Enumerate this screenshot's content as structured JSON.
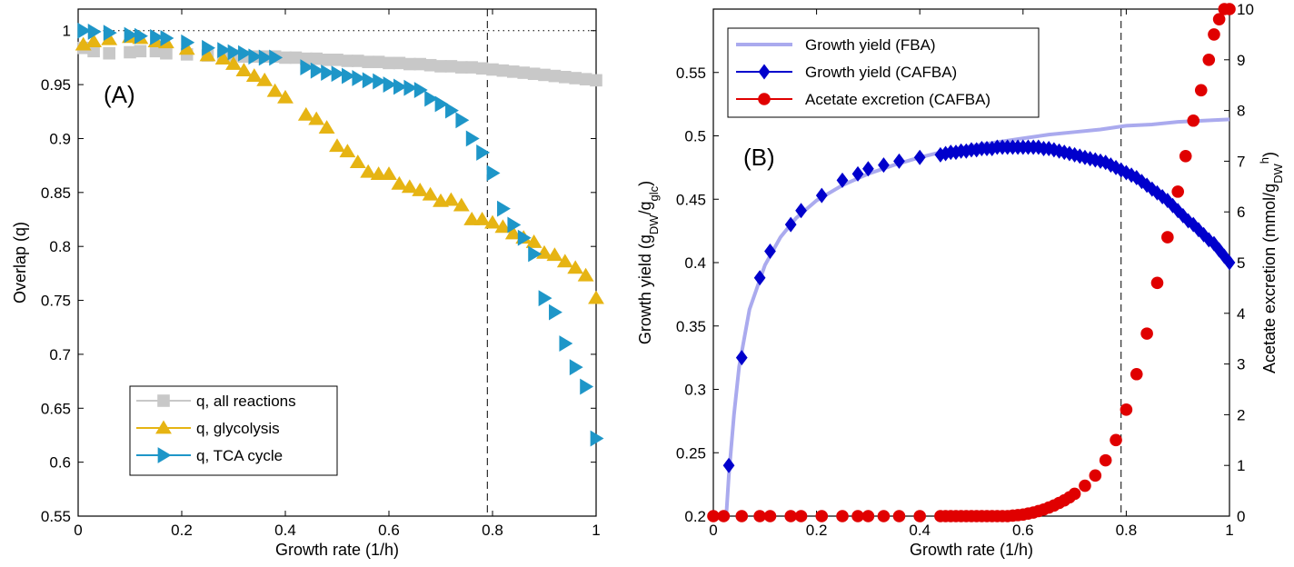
{
  "chart_data": [
    {
      "type": "scatter",
      "panel_label": "(A)",
      "xlabel": "Growth rate (1/h)",
      "ylabel": "Overlap (q)",
      "xlim": [
        0,
        1
      ],
      "ylim": [
        0.55,
        1.02
      ],
      "xticks": [
        "0",
        "0.2",
        "0.4",
        "0.6",
        "0.8",
        "1"
      ],
      "yticks": [
        "0.55",
        "0.6",
        "0.65",
        "0.7",
        "0.75",
        "0.8",
        "0.85",
        "0.9",
        "0.95",
        "1"
      ],
      "reference_lines": {
        "horizontal_dotted_y": 1.0,
        "vertical_dashed_x": 0.79
      },
      "legend_position": "bottom-left",
      "series": [
        {
          "name": "q, all reactions",
          "color": "#c8c8c8",
          "marker": "square",
          "x": [
            0.01,
            0.03,
            0.06,
            0.1,
            0.12,
            0.15,
            0.17,
            0.21,
            0.25,
            0.28,
            0.3,
            0.32,
            0.34,
            0.36,
            0.38,
            0.4,
            0.42,
            0.44,
            0.46,
            0.48,
            0.5,
            0.52,
            0.54,
            0.56,
            0.58,
            0.6,
            0.62,
            0.64,
            0.66,
            0.68,
            0.7,
            0.72,
            0.74,
            0.76,
            0.78,
            0.8,
            0.82,
            0.84,
            0.86,
            0.88,
            0.9,
            0.92,
            0.94,
            0.96,
            0.98,
            1.0
          ],
          "y": [
            0.984,
            0.981,
            0.979,
            0.98,
            0.981,
            0.981,
            0.979,
            0.978,
            0.977,
            0.977,
            0.977,
            0.976,
            0.976,
            0.976,
            0.976,
            0.975,
            0.975,
            0.974,
            0.974,
            0.973,
            0.973,
            0.972,
            0.972,
            0.971,
            0.971,
            0.97,
            0.97,
            0.969,
            0.969,
            0.968,
            0.967,
            0.967,
            0.966,
            0.966,
            0.965,
            0.964,
            0.963,
            0.962,
            0.961,
            0.96,
            0.959,
            0.958,
            0.957,
            0.956,
            0.955,
            0.954
          ]
        },
        {
          "name": "q, glycolysis",
          "color": "#e6b413",
          "marker": "triangle-up",
          "x": [
            0.01,
            0.03,
            0.06,
            0.1,
            0.12,
            0.15,
            0.17,
            0.21,
            0.25,
            0.28,
            0.3,
            0.32,
            0.34,
            0.36,
            0.38,
            0.4,
            0.44,
            0.46,
            0.48,
            0.5,
            0.52,
            0.54,
            0.56,
            0.58,
            0.6,
            0.62,
            0.64,
            0.66,
            0.68,
            0.7,
            0.72,
            0.74,
            0.76,
            0.78,
            0.8,
            0.82,
            0.84,
            0.86,
            0.88,
            0.9,
            0.92,
            0.94,
            0.96,
            0.98,
            1.0
          ],
          "y": [
            0.987,
            0.99,
            0.992,
            0.994,
            0.993,
            0.99,
            0.989,
            0.983,
            0.977,
            0.974,
            0.969,
            0.963,
            0.958,
            0.954,
            0.944,
            0.938,
            0.922,
            0.918,
            0.91,
            0.893,
            0.888,
            0.878,
            0.869,
            0.867,
            0.867,
            0.858,
            0.855,
            0.852,
            0.848,
            0.842,
            0.843,
            0.838,
            0.825,
            0.825,
            0.822,
            0.818,
            0.812,
            0.808,
            0.804,
            0.794,
            0.792,
            0.786,
            0.78,
            0.773,
            0.752
          ]
        },
        {
          "name": "q, TCA cycle",
          "color": "#1e96c8",
          "marker": "triangle-right",
          "x": [
            0.01,
            0.03,
            0.06,
            0.1,
            0.12,
            0.15,
            0.17,
            0.21,
            0.25,
            0.28,
            0.3,
            0.32,
            0.34,
            0.36,
            0.38,
            0.44,
            0.46,
            0.48,
            0.5,
            0.52,
            0.54,
            0.56,
            0.58,
            0.6,
            0.62,
            0.64,
            0.66,
            0.68,
            0.7,
            0.72,
            0.74,
            0.76,
            0.78,
            0.8,
            0.82,
            0.84,
            0.86,
            0.88,
            0.9,
            0.92,
            0.94,
            0.96,
            0.98,
            1.0
          ],
          "y": [
            1.0,
            0.999,
            0.998,
            0.996,
            0.995,
            0.994,
            0.993,
            0.989,
            0.984,
            0.982,
            0.98,
            0.979,
            0.976,
            0.975,
            0.975,
            0.966,
            0.963,
            0.961,
            0.96,
            0.958,
            0.956,
            0.954,
            0.953,
            0.95,
            0.948,
            0.947,
            0.945,
            0.937,
            0.932,
            0.926,
            0.917,
            0.9,
            0.887,
            0.868,
            0.835,
            0.82,
            0.808,
            0.793,
            0.752,
            0.739,
            0.71,
            0.688,
            0.67,
            0.622
          ]
        }
      ]
    },
    {
      "type": "scatter",
      "panel_label": "(B)",
      "xlabel": "Growth rate (1/h)",
      "ylabel_left": "Growth yield (g_DW/g_glc)",
      "ylabel_right": "Acetate excretion (mmol/g_DW h)",
      "xlim": [
        0,
        1
      ],
      "ylim_left": [
        0.2,
        0.6
      ],
      "ylim_right": [
        0,
        10
      ],
      "xticks": [
        "0",
        "0.2",
        "0.4",
        "0.6",
        "0.8",
        "1"
      ],
      "yticks_left": [
        "0.2",
        "0.25",
        "0.3",
        "0.35",
        "0.4",
        "0.45",
        "0.5",
        "0.55"
      ],
      "yticks_right": [
        "0",
        "1",
        "2",
        "3",
        "4",
        "5",
        "6",
        "7",
        "8",
        "9",
        "10"
      ],
      "reference_lines": {
        "vertical_dashed_x": 0.79
      },
      "legend_position": "top-left",
      "series": [
        {
          "name": "Growth yield (FBA)",
          "axis": "left",
          "color": "#aaaaee",
          "style": "line",
          "x": [
            0.025,
            0.03,
            0.04,
            0.05,
            0.07,
            0.1,
            0.13,
            0.16,
            0.2,
            0.25,
            0.3,
            0.35,
            0.4,
            0.45,
            0.5,
            0.55,
            0.6,
            0.65,
            0.7,
            0.75,
            0.8,
            0.85,
            0.9,
            0.95,
            1.0
          ],
          "y": [
            0.2,
            0.232,
            0.28,
            0.318,
            0.363,
            0.398,
            0.42,
            0.435,
            0.449,
            0.461,
            0.47,
            0.477,
            0.483,
            0.488,
            0.492,
            0.495,
            0.498,
            0.501,
            0.503,
            0.505,
            0.508,
            0.509,
            0.511,
            0.512,
            0.513
          ]
        },
        {
          "name": "Growth yield (CAFBA)",
          "axis": "left",
          "color": "#0000cc",
          "marker": "diamond",
          "x": [
            0.03,
            0.055,
            0.09,
            0.11,
            0.15,
            0.17,
            0.21,
            0.25,
            0.28,
            0.3,
            0.33,
            0.36,
            0.4,
            0.44,
            0.45,
            0.46,
            0.47,
            0.48,
            0.49,
            0.5,
            0.51,
            0.52,
            0.53,
            0.54,
            0.55,
            0.56,
            0.57,
            0.58,
            0.59,
            0.6,
            0.61,
            0.62,
            0.63,
            0.64,
            0.65,
            0.66,
            0.67,
            0.68,
            0.69,
            0.7,
            0.71,
            0.72,
            0.73,
            0.74,
            0.75,
            0.76,
            0.77,
            0.78,
            0.79,
            0.8,
            0.81,
            0.82,
            0.83,
            0.84,
            0.85,
            0.86,
            0.87,
            0.88,
            0.89,
            0.9,
            0.91,
            0.92,
            0.93,
            0.94,
            0.95,
            0.96,
            0.97,
            0.98,
            0.99,
            1.0
          ],
          "y": [
            0.24,
            0.325,
            0.388,
            0.409,
            0.43,
            0.441,
            0.453,
            0.465,
            0.47,
            0.474,
            0.477,
            0.48,
            0.483,
            0.485,
            0.486,
            0.487,
            0.487,
            0.488,
            0.488,
            0.489,
            0.489,
            0.49,
            0.49,
            0.49,
            0.491,
            0.491,
            0.491,
            0.491,
            0.491,
            0.491,
            0.491,
            0.491,
            0.491,
            0.49,
            0.49,
            0.489,
            0.488,
            0.487,
            0.486,
            0.485,
            0.484,
            0.483,
            0.482,
            0.481,
            0.48,
            0.479,
            0.477,
            0.475,
            0.473,
            0.471,
            0.469,
            0.467,
            0.464,
            0.461,
            0.458,
            0.455,
            0.452,
            0.449,
            0.445,
            0.441,
            0.437,
            0.433,
            0.43,
            0.426,
            0.422,
            0.418,
            0.415,
            0.41,
            0.405,
            0.4
          ]
        },
        {
          "name": "Acetate excretion (CAFBA)",
          "axis": "right",
          "color": "#e00000",
          "marker": "circle",
          "x": [
            0.0,
            0.02,
            0.055,
            0.09,
            0.11,
            0.15,
            0.17,
            0.21,
            0.25,
            0.28,
            0.3,
            0.33,
            0.36,
            0.4,
            0.44,
            0.45,
            0.46,
            0.47,
            0.48,
            0.49,
            0.5,
            0.51,
            0.52,
            0.53,
            0.54,
            0.55,
            0.56,
            0.57,
            0.58,
            0.59,
            0.6,
            0.61,
            0.62,
            0.63,
            0.64,
            0.65,
            0.66,
            0.67,
            0.68,
            0.69,
            0.7,
            0.72,
            0.74,
            0.76,
            0.78,
            0.8,
            0.82,
            0.84,
            0.86,
            0.88,
            0.9,
            0.915,
            0.93,
            0.945,
            0.96,
            0.97,
            0.98,
            0.99,
            1.0
          ],
          "y": [
            0.0,
            0.0,
            0.0,
            0.0,
            0.0,
            0.0,
            0.0,
            0.0,
            0.0,
            0.0,
            0.0,
            0.0,
            0.0,
            0.0,
            0.0,
            0.0,
            0.0,
            0.0,
            0.0,
            0.0,
            0.0,
            0.0,
            0.0,
            0.0,
            0.0,
            0.0,
            0.0,
            0.0,
            0.01,
            0.02,
            0.03,
            0.05,
            0.07,
            0.1,
            0.13,
            0.17,
            0.21,
            0.26,
            0.31,
            0.37,
            0.44,
            0.6,
            0.8,
            1.1,
            1.5,
            2.1,
            2.8,
            3.6,
            4.6,
            5.5,
            6.4,
            7.1,
            7.8,
            8.4,
            9.0,
            9.5,
            9.8,
            10.0,
            10.0
          ]
        }
      ]
    }
  ]
}
